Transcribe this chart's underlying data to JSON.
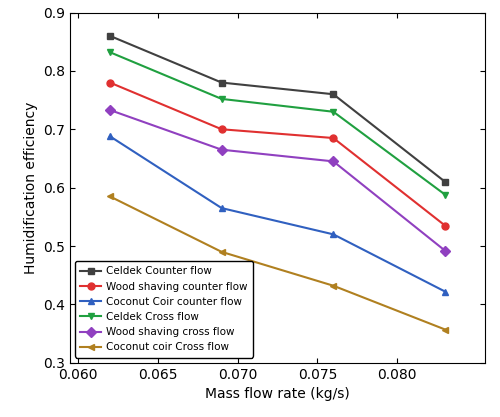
{
  "x": [
    0.062,
    0.069,
    0.076,
    0.083
  ],
  "series": [
    {
      "label": "Celdek Counter flow",
      "color": "#404040",
      "marker": "s",
      "y": [
        0.86,
        0.78,
        0.76,
        0.61
      ]
    },
    {
      "label": "Wood shaving counter flow",
      "color": "#e03030",
      "marker": "o",
      "y": [
        0.78,
        0.7,
        0.685,
        0.535
      ]
    },
    {
      "label": "Coconut Coir counter flow",
      "color": "#3060c0",
      "marker": "^",
      "y": [
        0.688,
        0.565,
        0.52,
        0.422
      ]
    },
    {
      "label": "Celdek Cross flow",
      "color": "#20a040",
      "marker": "v",
      "y": [
        0.832,
        0.752,
        0.73,
        0.588
      ]
    },
    {
      "label": "Wood shaving cross flow",
      "color": "#9040c0",
      "marker": "D",
      "y": [
        0.733,
        0.665,
        0.645,
        0.492
      ]
    },
    {
      "label": "Coconut coir Cross flow",
      "color": "#b08020",
      "marker": "<",
      "y": [
        0.585,
        0.49,
        0.432,
        0.357
      ]
    }
  ],
  "xlim": [
    0.0595,
    0.0855
  ],
  "ylim": [
    0.3,
    0.9
  ],
  "xticks": [
    0.06,
    0.065,
    0.07,
    0.075,
    0.08
  ],
  "yticks": [
    0.3,
    0.4,
    0.5,
    0.6,
    0.7,
    0.8,
    0.9
  ],
  "xlabel": "Mass flow rate (kg/s)",
  "ylabel": "Humidification efficiency",
  "legend_loc": "lower left",
  "markersize": 5,
  "linewidth": 1.5,
  "figsize": [
    5.0,
    4.17
  ],
  "dpi": 100
}
